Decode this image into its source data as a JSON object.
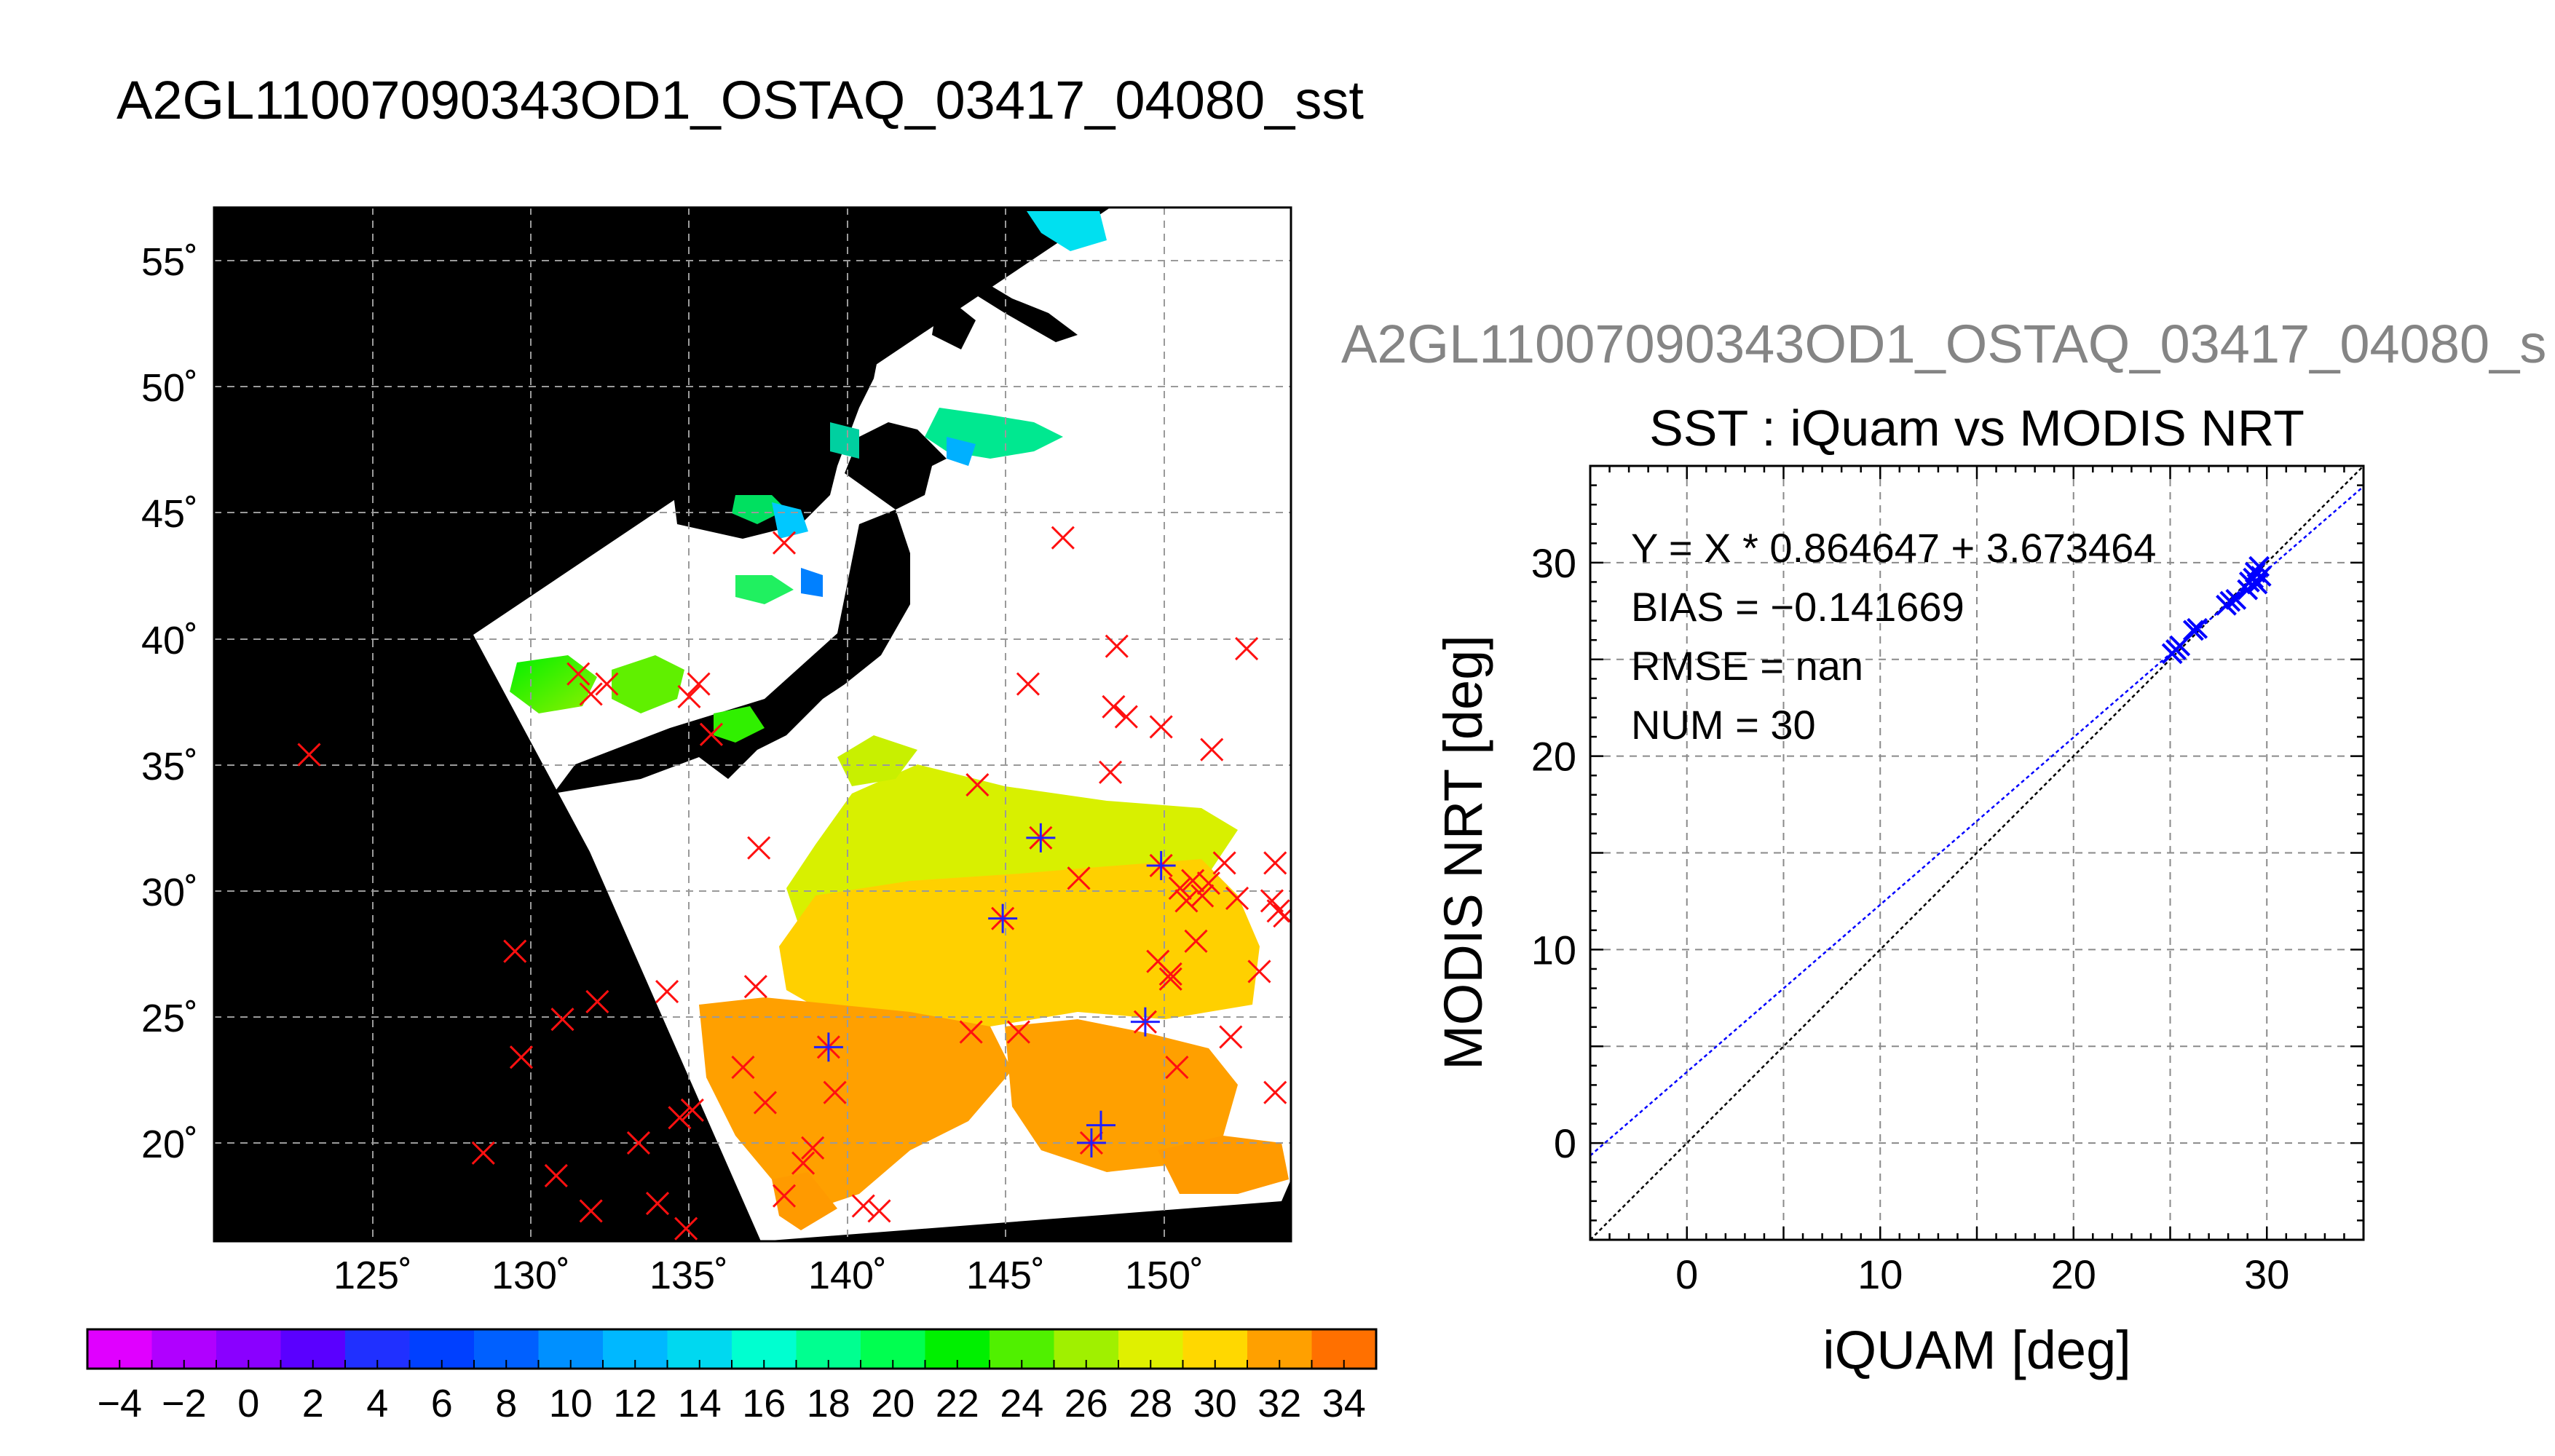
{
  "titles": {
    "main": "A2GL11007090343OD1_OSTAQ_03417_04080_sst",
    "scatter_header": "A2GL11007090343OD1_OSTAQ_03417_04080_s"
  },
  "chart_data": [
    {
      "type": "map",
      "title": "",
      "x_ticks": [
        "125˚",
        "130˚",
        "135˚",
        "140˚",
        "145˚",
        "150˚"
      ],
      "y_ticks": [
        "55˚",
        "50˚",
        "45˚",
        "40˚",
        "35˚",
        "30˚",
        "25˚",
        "20˚"
      ],
      "lon_range": [
        120,
        154
      ],
      "lat_range": [
        16,
        57
      ],
      "grid": true,
      "colorbar": {
        "min": -5,
        "max": 35,
        "step": 2,
        "tick_labels": [
          "−4",
          "−2",
          "0",
          "2",
          "4",
          "6",
          "8",
          "10",
          "12",
          "14",
          "16",
          "18",
          "20",
          "22",
          "24",
          "26",
          "28",
          "30",
          "32",
          "34"
        ],
        "colors": [
          "#e000ff",
          "#b000ff",
          "#8a00ff",
          "#5a00ff",
          "#2030ff",
          "#0040ff",
          "#0060ff",
          "#0090ff",
          "#00b8ff",
          "#00d8f0",
          "#00ffd0",
          "#00ff90",
          "#00ff50",
          "#00f000",
          "#50f000",
          "#a0f000",
          "#e0f000",
          "#ffd800",
          "#ffa000",
          "#ff7000",
          "#ff2000"
        ]
      },
      "markers_red": [
        [
          123,
          35.3
        ],
        [
          128.5,
          19.5
        ],
        [
          129.5,
          27.5
        ],
        [
          129.7,
          23.3
        ],
        [
          130.8,
          18.6
        ],
        [
          131,
          24.8
        ],
        [
          131.5,
          38.5
        ],
        [
          131.9,
          17.2
        ],
        [
          131.9,
          37.7
        ],
        [
          132.1,
          25.5
        ],
        [
          132.4,
          38.1
        ],
        [
          133.4,
          19.9
        ],
        [
          134,
          17.5
        ],
        [
          134.3,
          25.9
        ],
        [
          134.7,
          20.9
        ],
        [
          134.9,
          16.5
        ],
        [
          135,
          37.6
        ],
        [
          135.1,
          21.2
        ],
        [
          135.3,
          38.1
        ],
        [
          135.7,
          36.1
        ],
        [
          136.7,
          22.9
        ],
        [
          137.1,
          26.1
        ],
        [
          137.2,
          31.6
        ],
        [
          137.4,
          21.5
        ],
        [
          138,
          17.8
        ],
        [
          138,
          43.7
        ],
        [
          138.6,
          19.1
        ],
        [
          138.9,
          19.7
        ],
        [
          139.6,
          21.9
        ],
        [
          140.5,
          17.4
        ],
        [
          141,
          17.2
        ],
        [
          143.9,
          24.3
        ],
        [
          144.1,
          34.1
        ],
        [
          145.4,
          24.3
        ],
        [
          145.7,
          38.1
        ],
        [
          146.1,
          32
        ],
        [
          146.8,
          43.9
        ],
        [
          147.3,
          30.4
        ],
        [
          147.7,
          19.9
        ],
        [
          148.3,
          34.6
        ],
        [
          148.4,
          37.2
        ],
        [
          148.5,
          39.6
        ],
        [
          148.8,
          36.8
        ],
        [
          149.4,
          24.7
        ],
        [
          149.8,
          27.1
        ],
        [
          149.9,
          30.9
        ],
        [
          149.9,
          36.4
        ],
        [
          150.2,
          26.6
        ],
        [
          150.2,
          26.4
        ],
        [
          150.4,
          22.9
        ],
        [
          150.5,
          30
        ],
        [
          150.7,
          29.5
        ],
        [
          150.9,
          30.3
        ],
        [
          151,
          27.9
        ],
        [
          151.2,
          29.7
        ],
        [
          151.4,
          30.2
        ],
        [
          151.5,
          35.5
        ],
        [
          151.9,
          31
        ],
        [
          152.1,
          24.1
        ],
        [
          152.3,
          29.6
        ],
        [
          152.6,
          39.5
        ],
        [
          153,
          26.7
        ],
        [
          153.4,
          29.5
        ],
        [
          153.5,
          31
        ],
        [
          153.5,
          21.9
        ],
        [
          153.6,
          29.1
        ],
        [
          153.8,
          28.9
        ],
        [
          144.9,
          28.8
        ],
        [
          139.4,
          23.7
        ]
      ],
      "markers_blue": [
        [
          139.4,
          23.7
        ],
        [
          144.9,
          28.8
        ],
        [
          146.1,
          32
        ],
        [
          147.7,
          19.9
        ],
        [
          148,
          20.6
        ],
        [
          149.4,
          24.7
        ],
        [
          149.9,
          30.9
        ]
      ]
    },
    {
      "type": "scatter",
      "title": "SST : iQuam vs MODIS NRT",
      "xlabel": "iQUAM [deg]",
      "ylabel": "MODIS NRT [deg]",
      "xlim": [
        -5,
        35
      ],
      "ylim": [
        -5,
        35
      ],
      "x_ticks": [
        0,
        10,
        20,
        30
      ],
      "y_ticks": [
        0,
        10,
        20,
        30
      ],
      "grid": true,
      "stats": {
        "fit": "Y = X * 0.864647 + 3.673464",
        "bias": "BIAS = −0.141669",
        "rmse": "RMSE = nan",
        "num": "NUM = 30"
      },
      "fit_line": {
        "slope": 0.864647,
        "intercept": 3.673464,
        "color": "#0000ff"
      },
      "identity_line": {
        "color": "#000000"
      },
      "points": [
        [
          25.1,
          25.3
        ],
        [
          25.3,
          25.5
        ],
        [
          25.5,
          25.7
        ],
        [
          26.2,
          26.5
        ],
        [
          26.4,
          26.6
        ],
        [
          27.9,
          27.8
        ],
        [
          28.1,
          28
        ],
        [
          28.4,
          28.1
        ],
        [
          29,
          28.6
        ],
        [
          29.1,
          29
        ],
        [
          29.3,
          29.2
        ],
        [
          29.4,
          29.5
        ],
        [
          29.5,
          28.9
        ],
        [
          29.6,
          29.8
        ],
        [
          29.7,
          29.3
        ]
      ],
      "marker_color": "#0000ff"
    }
  ]
}
